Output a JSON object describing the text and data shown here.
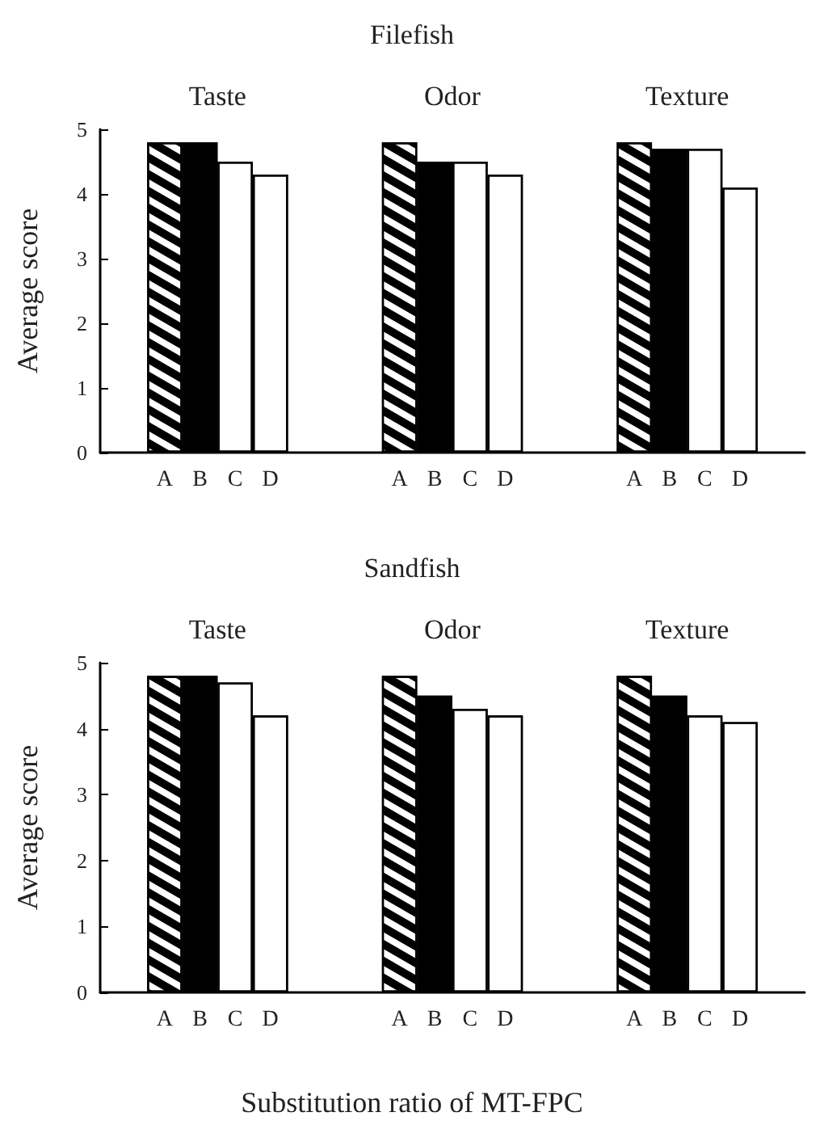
{
  "chart_data": [
    {
      "type": "bar",
      "title": "Filefish",
      "ylabel": "Average score",
      "categories": [
        "Taste",
        "Odor",
        "Texture"
      ],
      "series": [
        {
          "name": "A",
          "color": "#ffffff",
          "values": [
            4.8,
            4.8,
            4.8
          ]
        },
        {
          "name": "B",
          "color": "#000000",
          "values": [
            4.8,
            4.5,
            4.7
          ]
        },
        {
          "name": "C",
          "color": "#ffffff",
          "values": [
            4.5,
            4.5,
            4.7
          ]
        },
        {
          "name": "D",
          "color": "#ffffff",
          "values": [
            4.3,
            4.3,
            4.1
          ]
        }
      ],
      "ylim": [
        0,
        5
      ],
      "yticks": [
        0,
        1,
        2,
        3,
        4,
        5
      ],
      "grid": false,
      "legend": false
    },
    {
      "type": "bar",
      "title": "Sandfish",
      "ylabel": "Average score",
      "xlabel": "Substitution ratio of MT-FPC",
      "categories": [
        "Taste",
        "Odor",
        "Texture"
      ],
      "series": [
        {
          "name": "A",
          "color": "#ffffff",
          "values": [
            4.8,
            4.8,
            4.8
          ]
        },
        {
          "name": "B",
          "color": "#000000",
          "values": [
            4.8,
            4.5,
            4.5
          ]
        },
        {
          "name": "C",
          "color": "#ffffff",
          "values": [
            4.7,
            4.3,
            4.2
          ]
        },
        {
          "name": "D",
          "color": "#ffffff",
          "values": [
            4.2,
            4.2,
            4.1
          ]
        }
      ],
      "ylim": [
        0,
        5
      ],
      "yticks": [
        0,
        1,
        2,
        3,
        4,
        5
      ],
      "grid": false,
      "legend": false
    }
  ]
}
